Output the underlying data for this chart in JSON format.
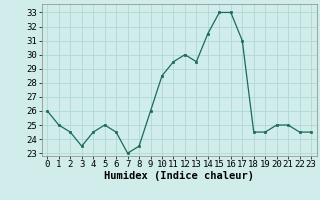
{
  "x": [
    0,
    1,
    2,
    3,
    4,
    5,
    6,
    7,
    8,
    9,
    10,
    11,
    12,
    13,
    14,
    15,
    16,
    17,
    18,
    19,
    20,
    21,
    22,
    23
  ],
  "y": [
    26,
    25,
    24.5,
    23.5,
    24.5,
    25,
    24.5,
    23,
    23.5,
    26,
    28.5,
    29.5,
    30,
    29.5,
    31.5,
    33,
    33,
    31,
    24.5,
    24.5,
    25,
    25,
    24.5,
    24.5
  ],
  "line_color": "#1a6b5a",
  "marker_color": "#1a6b5a",
  "bg_color": "#d0edeb",
  "grid_color": "#b0d8d4",
  "xlabel": "Humidex (Indice chaleur)",
  "xlabel_fontsize": 7.5,
  "tick_fontsize": 6.5,
  "ylim": [
    22.8,
    33.6
  ],
  "yticks": [
    23,
    24,
    25,
    26,
    27,
    28,
    29,
    30,
    31,
    32,
    33
  ],
  "xticks": [
    0,
    1,
    2,
    3,
    4,
    5,
    6,
    7,
    8,
    9,
    10,
    11,
    12,
    13,
    14,
    15,
    16,
    17,
    18,
    19,
    20,
    21,
    22,
    23
  ],
  "xlim": [
    -0.5,
    23.5
  ]
}
